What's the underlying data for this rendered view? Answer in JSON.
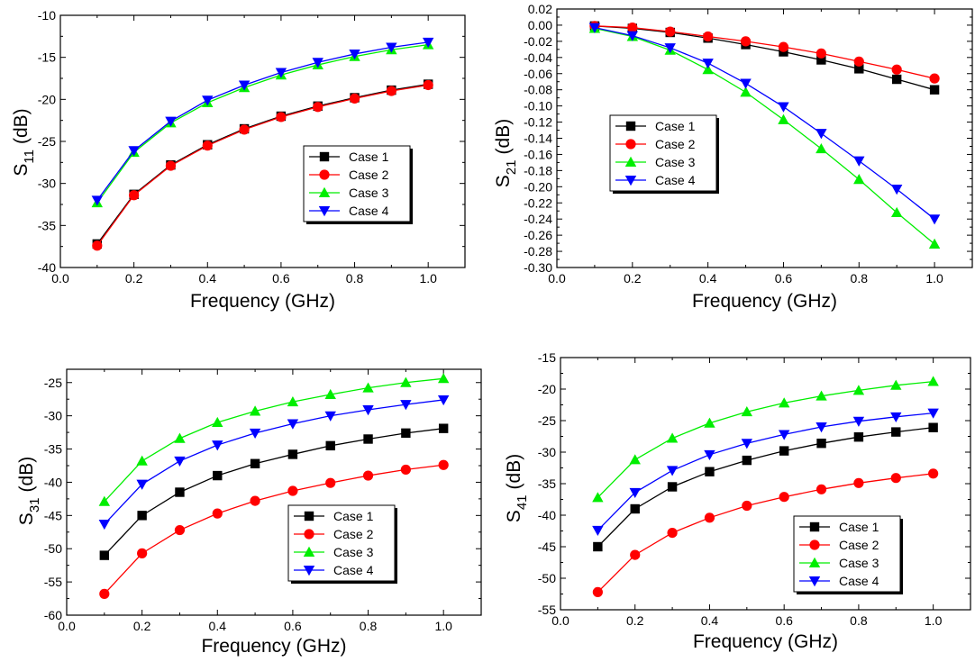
{
  "chart_data": [
    {
      "type": "line",
      "xlabel": "Frequency (GHz)",
      "ylabel_main": "S",
      "ylabel_sub": "11",
      "ylabel_unit": "(dB)",
      "xlim": [
        0.0,
        1.1
      ],
      "ylim": [
        -40,
        -10
      ],
      "xticks": [
        0.0,
        0.2,
        0.4,
        0.6,
        0.8,
        1.0
      ],
      "xtick_labels": [
        "0.0",
        "0.2",
        "0.4",
        "0.6",
        "0.8",
        "1.0"
      ],
      "yticks": [
        -40,
        -35,
        -30,
        -25,
        -20,
        -15,
        -10
      ],
      "ytick_labels": [
        "-40",
        "-35",
        "-30",
        "-25",
        "-20",
        "-15",
        "-10"
      ],
      "grid": false,
      "legend_position": "right",
      "x": [
        0.1,
        0.2,
        0.3,
        0.4,
        0.5,
        0.6,
        0.7,
        0.8,
        0.9,
        1.0
      ],
      "series": [
        {
          "name": "Case 1",
          "color": "#000000",
          "marker": "square",
          "values": [
            -37.2,
            -31.3,
            -27.8,
            -25.4,
            -23.5,
            -22.0,
            -20.8,
            -19.8,
            -18.9,
            -18.2
          ]
        },
        {
          "name": "Case 2",
          "color": "#ff0000",
          "marker": "circle",
          "values": [
            -37.4,
            -31.4,
            -27.9,
            -25.5,
            -23.6,
            -22.1,
            -20.9,
            -19.9,
            -19.0,
            -18.3
          ]
        },
        {
          "name": "Case 3",
          "color": "#00ee00",
          "marker": "triangle-up",
          "values": [
            -32.3,
            -26.3,
            -22.8,
            -20.4,
            -18.6,
            -17.1,
            -15.9,
            -14.9,
            -14.1,
            -13.5
          ]
        },
        {
          "name": "Case 4",
          "color": "#0000ff",
          "marker": "triangle-down",
          "values": [
            -32.0,
            -26.1,
            -22.6,
            -20.1,
            -18.3,
            -16.8,
            -15.6,
            -14.6,
            -13.8,
            -13.2
          ]
        }
      ]
    },
    {
      "type": "line",
      "xlabel": "Frequency (GHz)",
      "ylabel_main": "S",
      "ylabel_sub": "21",
      "ylabel_unit": "(dB)",
      "xlim": [
        0.0,
        1.1
      ],
      "ylim": [
        -0.3,
        0.02
      ],
      "xticks": [
        0.0,
        0.2,
        0.4,
        0.6,
        0.8,
        1.0
      ],
      "xtick_labels": [
        "0.0",
        "0.2",
        "0.4",
        "0.6",
        "0.8",
        "1.0"
      ],
      "yticks": [
        -0.3,
        -0.28,
        -0.26,
        -0.24,
        -0.22,
        -0.2,
        -0.18,
        -0.16,
        -0.14,
        -0.12,
        -0.1,
        -0.08,
        -0.06,
        -0.04,
        -0.02,
        0.0,
        0.02
      ],
      "ytick_labels": [
        "-0.30",
        "-0.28",
        "-0.26",
        "-0.24",
        "-0.22",
        "-0.20",
        "-0.18",
        "-0.16",
        "-0.14",
        "-0.12",
        "-0.10",
        "-0.08",
        "-0.06",
        "-0.04",
        "-0.02",
        "0.00",
        "0.02"
      ],
      "grid": false,
      "legend_position": "left",
      "x": [
        0.1,
        0.2,
        0.3,
        0.4,
        0.5,
        0.6,
        0.7,
        0.8,
        0.9,
        1.0
      ],
      "series": [
        {
          "name": "Case 1",
          "color": "#000000",
          "marker": "square",
          "values": [
            -0.001,
            -0.004,
            -0.009,
            -0.016,
            -0.024,
            -0.033,
            -0.043,
            -0.054,
            -0.067,
            -0.08
          ]
        },
        {
          "name": "Case 2",
          "color": "#ff0000",
          "marker": "circle",
          "values": [
            -0.001,
            -0.003,
            -0.008,
            -0.014,
            -0.02,
            -0.027,
            -0.035,
            -0.045,
            -0.055,
            -0.066
          ]
        },
        {
          "name": "Case 3",
          "color": "#00ee00",
          "marker": "triangle-up",
          "values": [
            -0.004,
            -0.014,
            -0.031,
            -0.055,
            -0.083,
            -0.117,
            -0.153,
            -0.191,
            -0.232,
            -0.271
          ]
        },
        {
          "name": "Case 4",
          "color": "#0000ff",
          "marker": "triangle-down",
          "values": [
            -0.003,
            -0.013,
            -0.028,
            -0.047,
            -0.072,
            -0.101,
            -0.134,
            -0.168,
            -0.203,
            -0.24
          ]
        }
      ]
    },
    {
      "type": "line",
      "xlabel": "Frequency (GHz)",
      "ylabel_main": "S",
      "ylabel_sub": "31",
      "ylabel_unit": "(dB)",
      "xlim": [
        0.0,
        1.1
      ],
      "ylim": [
        -60,
        -23
      ],
      "xticks": [
        0.0,
        0.2,
        0.4,
        0.6,
        0.8,
        1.0
      ],
      "xtick_labels": [
        "0.0",
        "0.2",
        "0.4",
        "0.6",
        "0.8",
        "1.0"
      ],
      "yticks": [
        -60,
        -55,
        -50,
        -45,
        -40,
        -35,
        -30,
        -25
      ],
      "ytick_labels": [
        "-60",
        "-55",
        "-50",
        "-45",
        "-40",
        "-35",
        "-30",
        "-25"
      ],
      "grid": false,
      "legend_position": "center-right",
      "x": [
        0.1,
        0.2,
        0.3,
        0.4,
        0.5,
        0.6,
        0.7,
        0.8,
        0.9,
        1.0
      ],
      "series": [
        {
          "name": "Case 1",
          "color": "#000000",
          "marker": "square",
          "values": [
            -51.0,
            -45.0,
            -41.5,
            -39.0,
            -37.2,
            -35.8,
            -34.5,
            -33.5,
            -32.6,
            -31.9
          ]
        },
        {
          "name": "Case 2",
          "color": "#ff0000",
          "marker": "circle",
          "values": [
            -56.8,
            -50.7,
            -47.2,
            -44.7,
            -42.8,
            -41.3,
            -40.1,
            -39.0,
            -38.1,
            -37.4
          ]
        },
        {
          "name": "Case 3",
          "color": "#00ee00",
          "marker": "triangle-up",
          "values": [
            -42.9,
            -36.8,
            -33.4,
            -31.0,
            -29.3,
            -27.9,
            -26.8,
            -25.8,
            -25.0,
            -24.4
          ]
        },
        {
          "name": "Case 4",
          "color": "#0000ff",
          "marker": "triangle-down",
          "values": [
            -46.3,
            -40.3,
            -36.8,
            -34.4,
            -32.6,
            -31.2,
            -30.0,
            -29.1,
            -28.3,
            -27.6
          ]
        }
      ]
    },
    {
      "type": "line",
      "xlabel": "Frequency (GHz)",
      "ylabel_main": "S",
      "ylabel_sub": "41",
      "ylabel_unit": "(dB)",
      "xlim": [
        0.0,
        1.1
      ],
      "ylim": [
        -55,
        -15
      ],
      "xticks": [
        0.0,
        0.2,
        0.4,
        0.6,
        0.8,
        1.0
      ],
      "xtick_labels": [
        "0.0",
        "0.2",
        "0.4",
        "0.6",
        "0.8",
        "1.0"
      ],
      "yticks": [
        -55,
        -50,
        -45,
        -40,
        -35,
        -30,
        -25,
        -20,
        -15
      ],
      "ytick_labels": [
        "-55",
        "-50",
        "-45",
        "-40",
        "-35",
        "-30",
        "-25",
        "-20",
        "-15"
      ],
      "grid": false,
      "legend_position": "center-right",
      "x": [
        0.1,
        0.2,
        0.3,
        0.4,
        0.5,
        0.6,
        0.7,
        0.8,
        0.9,
        1.0
      ],
      "series": [
        {
          "name": "Case 1",
          "color": "#000000",
          "marker": "square",
          "values": [
            -45.0,
            -39.0,
            -35.5,
            -33.1,
            -31.3,
            -29.8,
            -28.6,
            -27.6,
            -26.8,
            -26.1
          ]
        },
        {
          "name": "Case 2",
          "color": "#ff0000",
          "marker": "circle",
          "values": [
            -52.2,
            -46.3,
            -42.8,
            -40.4,
            -38.5,
            -37.1,
            -35.9,
            -34.9,
            -34.1,
            -33.4
          ]
        },
        {
          "name": "Case 3",
          "color": "#00ee00",
          "marker": "triangle-up",
          "values": [
            -37.2,
            -31.2,
            -27.8,
            -25.4,
            -23.6,
            -22.2,
            -21.1,
            -20.2,
            -19.4,
            -18.8
          ]
        },
        {
          "name": "Case 4",
          "color": "#0000ff",
          "marker": "triangle-down",
          "values": [
            -42.4,
            -36.4,
            -32.9,
            -30.4,
            -28.6,
            -27.2,
            -26.0,
            -25.1,
            -24.4,
            -23.8
          ]
        }
      ]
    }
  ]
}
